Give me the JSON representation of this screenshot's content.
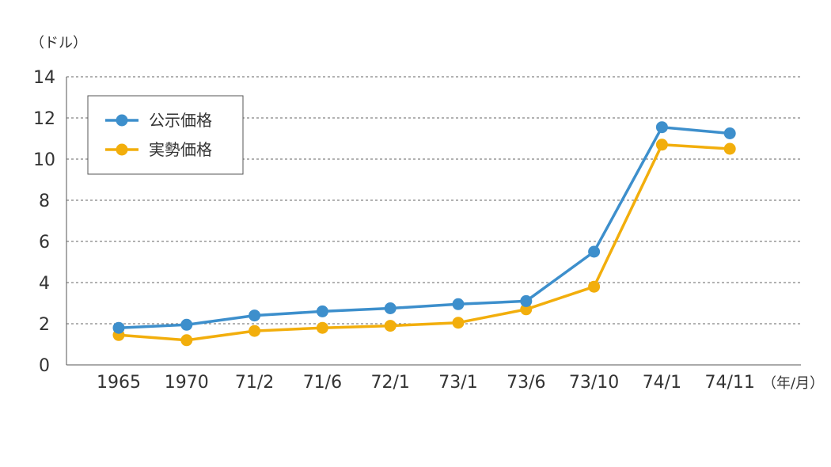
{
  "chart_data": {
    "type": "line",
    "title": "",
    "ylabel": "（ドル）",
    "xlabel": "（年/月）",
    "categories": [
      "1965",
      "1970",
      "71/2",
      "71/6",
      "72/1",
      "73/1",
      "73/6",
      "73/10",
      "74/1",
      "74/11"
    ],
    "ylim": [
      0,
      14
    ],
    "yticks": [
      0,
      2,
      4,
      6,
      8,
      10,
      12,
      14
    ],
    "grid": true,
    "legend": "top-left",
    "series": [
      {
        "name": "公示価格",
        "color": "#3d8fcc",
        "values": [
          1.8,
          1.95,
          2.4,
          2.6,
          2.75,
          2.95,
          3.1,
          5.5,
          11.55,
          11.25
        ]
      },
      {
        "name": "実勢価格",
        "color": "#f2ae0c",
        "values": [
          1.45,
          1.2,
          1.65,
          1.8,
          1.9,
          2.05,
          2.7,
          3.8,
          10.7,
          10.5
        ]
      }
    ]
  }
}
